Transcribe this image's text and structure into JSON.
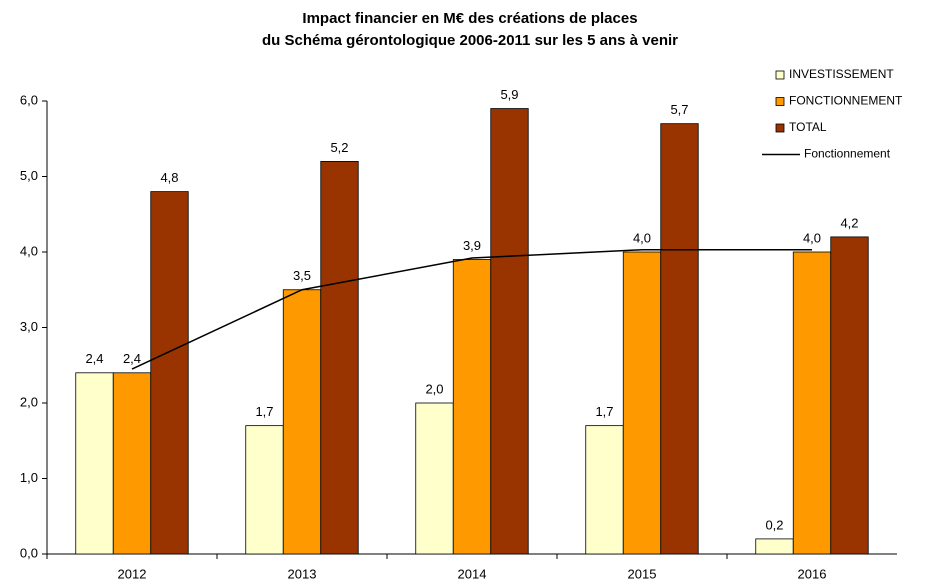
{
  "chart_data": {
    "type": "bar",
    "title": [
      "Impact financier en M€ des créations de places",
      "du Schéma gérontologique 2006-2011 sur les 5 ans à venir"
    ],
    "categories": [
      "2012",
      "2013",
      "2014",
      "2015",
      "2016"
    ],
    "series": [
      {
        "name": "INVESTISSEMENT",
        "color": "#ffffcc",
        "values": [
          2.4,
          1.7,
          2.0,
          1.7,
          0.2
        ],
        "value_labels": [
          "2,4",
          "1,7",
          "2,0",
          "1,7",
          "0,2"
        ]
      },
      {
        "name": "FONCTIONNEMENT",
        "color": "#ff9900",
        "values": [
          2.4,
          3.5,
          3.9,
          4.0,
          4.0
        ],
        "value_labels": [
          "2,4",
          "3,5",
          "3,9",
          "4,0",
          "4,0"
        ]
      },
      {
        "name": "TOTAL",
        "color": "#993300",
        "values": [
          4.8,
          5.2,
          5.9,
          5.7,
          4.2
        ],
        "value_labels": [
          "4,8",
          "5,2",
          "5,9",
          "5,7",
          "4,2"
        ]
      },
      {
        "name": "Fonctionnement",
        "color": "#000000",
        "type": "line",
        "values": [
          2.45,
          3.5,
          3.92,
          4.03,
          4.03
        ]
      }
    ],
    "ylim": [
      0,
      6
    ],
    "yticks": [
      {
        "value": 0,
        "label": "0,0"
      },
      {
        "value": 1,
        "label": "1,0"
      },
      {
        "value": 2,
        "label": "2,0"
      },
      {
        "value": 3,
        "label": "3,0"
      },
      {
        "value": 4,
        "label": "4,0"
      },
      {
        "value": 5,
        "label": "5,0"
      },
      {
        "value": 6,
        "label": "6,0"
      }
    ],
    "grid": false,
    "legend": "top-right"
  }
}
